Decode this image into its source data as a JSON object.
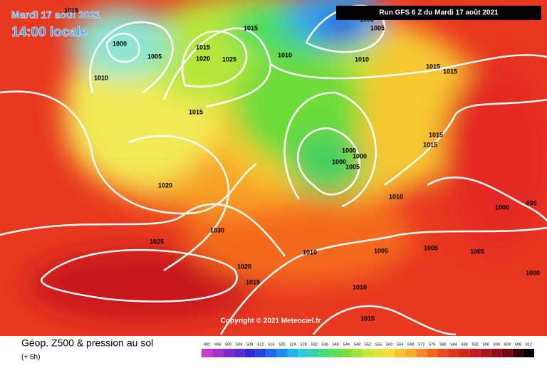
{
  "header": {
    "date": "Mardi 17 août 2021",
    "time": "14:00 locale",
    "run": "Run GFS 6 Z du Mardi 17 août 2021"
  },
  "isobar_labels": [
    "1015",
    "1000",
    "1005",
    "1010",
    "1015",
    "1020",
    "1025",
    "1015",
    "1010",
    "1000",
    "1005",
    "1010",
    "1015",
    "1015",
    "1015",
    "1015",
    "1015",
    "1000",
    "1000",
    "1000",
    "1005",
    "1020",
    "1010",
    "1000",
    "995",
    "1030",
    "1025",
    "1010",
    "1005",
    "1005",
    "1005",
    "1000",
    "1020",
    "1015",
    "1010",
    "1015"
  ],
  "copyright": "Copyright © 2021 Meteociel.fr",
  "footer": {
    "title": "Géop. Z500 & pression au sol",
    "step": "(+ 6h)"
  },
  "scale": [
    "492",
    "496",
    "500",
    "504",
    "508",
    "512",
    "516",
    "520",
    "524",
    "528",
    "532",
    "536",
    "540",
    "544",
    "548",
    "552",
    "556",
    "560",
    "564",
    "568",
    "572",
    "576",
    "580",
    "584",
    "588",
    "592",
    "596",
    "600",
    "604",
    "608",
    "612"
  ]
}
